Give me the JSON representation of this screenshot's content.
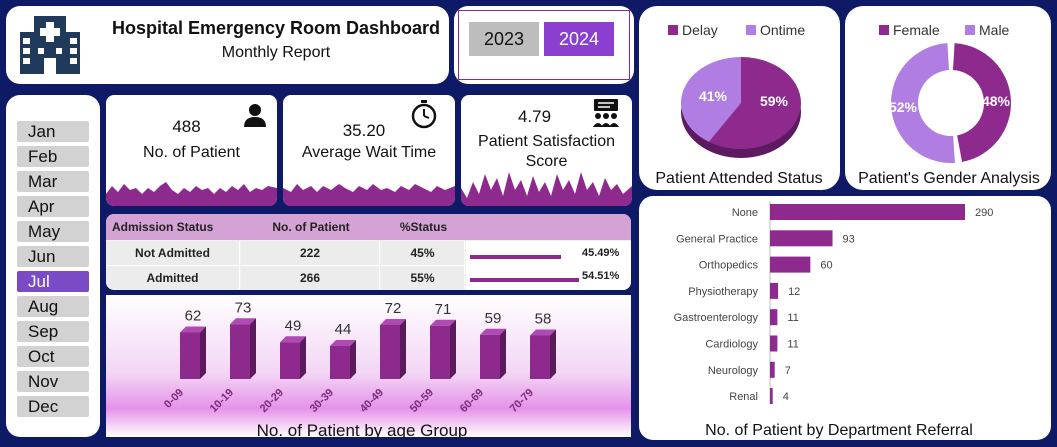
{
  "header": {
    "title": "Hospital Emergency Room Dashboard",
    "subtitle": "Monthly Report",
    "logo_icon": "hospital-icon"
  },
  "years": {
    "options": [
      "2023",
      "2024"
    ],
    "selected": "2024"
  },
  "months": {
    "items": [
      "Jan",
      "Feb",
      "Mar",
      "Apr",
      "May",
      "Jun",
      "Jul",
      "Aug",
      "Sep",
      "Oct",
      "Nov",
      "Dec"
    ],
    "selected": "Jul"
  },
  "kpis": [
    {
      "value": "488",
      "label": "No. of Patient",
      "icon": "patient-icon"
    },
    {
      "value": "35.20",
      "label": "Average Wait Time",
      "icon": "stopwatch-icon"
    },
    {
      "value": "4.79",
      "label": "Patient Satisfaction Score",
      "icon": "group-presentation-icon"
    }
  ],
  "admission_table": {
    "headers": [
      "Admission Status",
      "No. of Patient",
      "%Status"
    ],
    "rows": [
      {
        "status": "Not Admitted",
        "count": "222",
        "pct": "45%",
        "bar_label": "45.49%",
        "bar_value": 45.49
      },
      {
        "status": "Admitted",
        "count": "266",
        "pct": "55%",
        "bar_label": "54.51%",
        "bar_value": 54.51
      }
    ]
  },
  "colors": {
    "purple": "#8e2a8e",
    "light_purple": "#b07ee2",
    "navy": "#0e1a66"
  },
  "chart_data": [
    {
      "type": "pie",
      "title": "Patient Attended Status",
      "legend": [
        "Delay",
        "Ontime"
      ],
      "legend_position": "top",
      "values": [
        59,
        41
      ],
      "labels": [
        "59%",
        "41%"
      ]
    },
    {
      "type": "pie",
      "title": "Patient's Gender Analysis",
      "legend": [
        "Female",
        "Male"
      ],
      "legend_position": "top",
      "values": [
        48,
        52
      ],
      "labels": [
        "48%",
        "52%"
      ]
    },
    {
      "type": "bar",
      "title": "No. of Patient by age Group",
      "categories": [
        "0-09",
        "10-19",
        "20-29",
        "30-39",
        "40-49",
        "50-59",
        "60-69",
        "70-79"
      ],
      "values": [
        62,
        73,
        49,
        44,
        72,
        71,
        59,
        58
      ]
    },
    {
      "type": "bar",
      "orientation": "horizontal",
      "title": "No. of Patient by Department Referral",
      "categories": [
        "None",
        "General Practice",
        "Orthopedics",
        "Physiotherapy",
        "Gastroenterology",
        "Cardiology",
        "Neurology",
        "Renal"
      ],
      "values": [
        290,
        93,
        60,
        12,
        11,
        11,
        7,
        4
      ]
    }
  ]
}
